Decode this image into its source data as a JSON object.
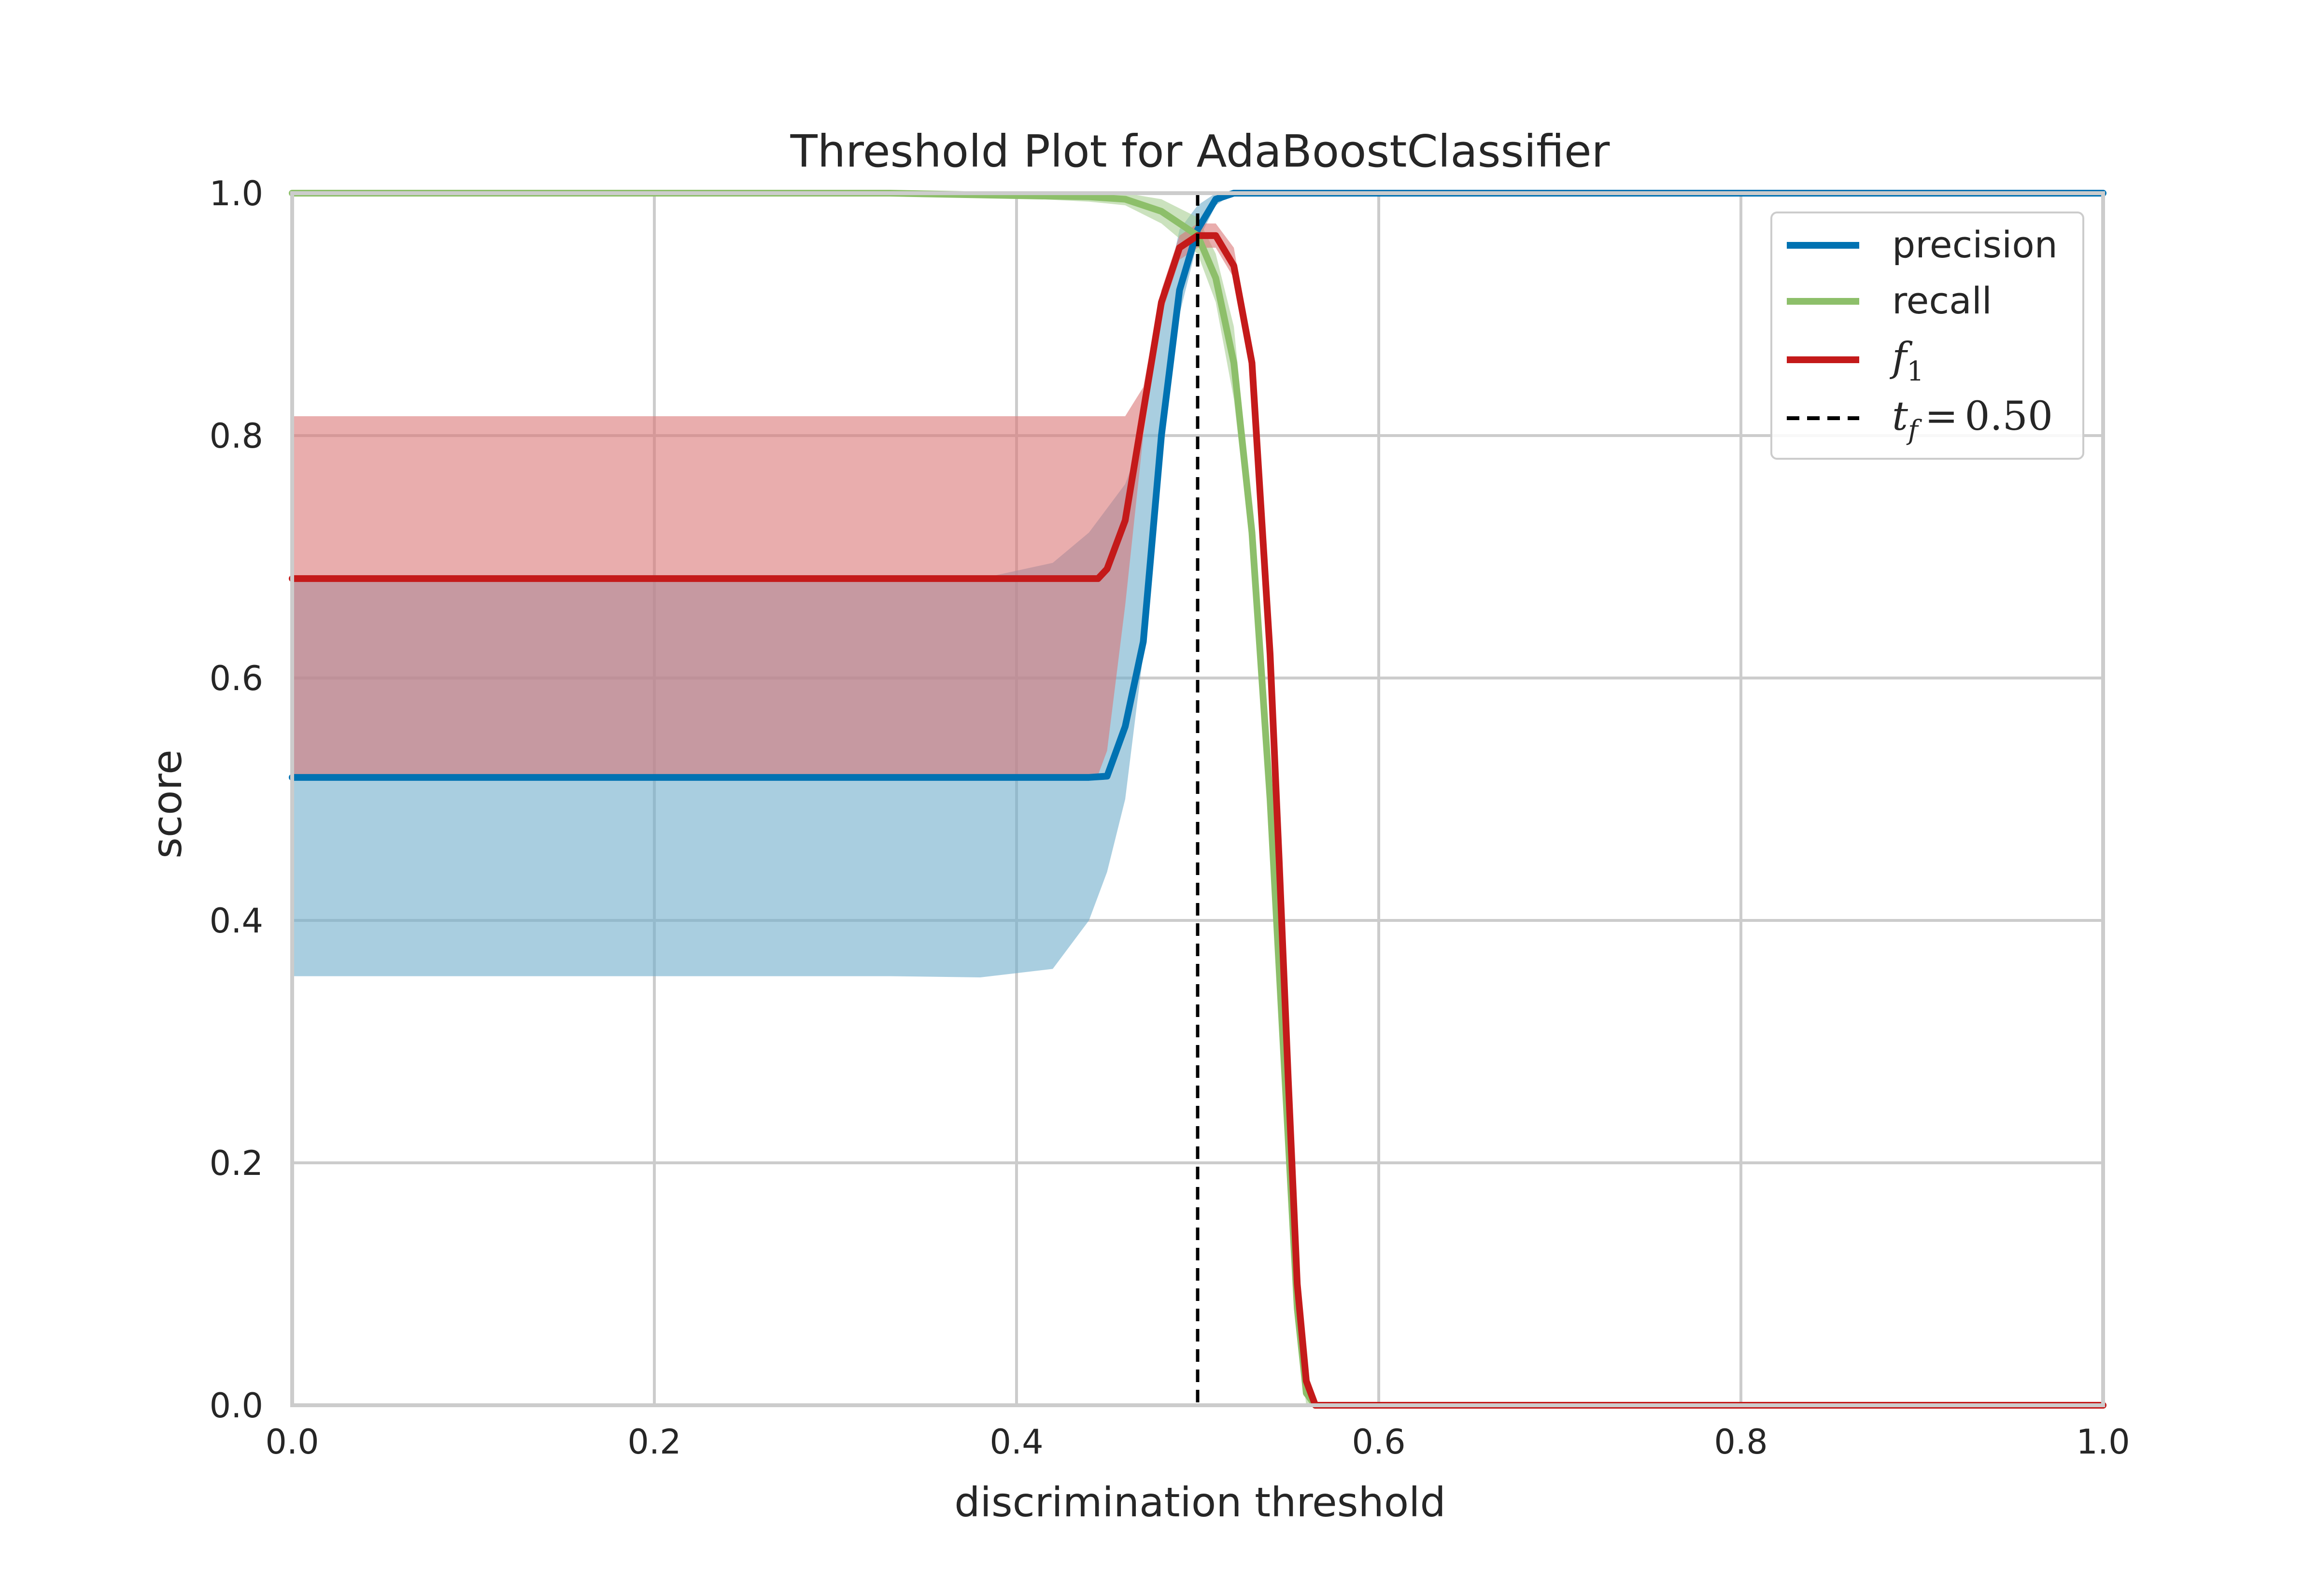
{
  "chart_data": {
    "type": "line",
    "title": "Threshold Plot for AdaBoostClassifier",
    "xlabel": "discrimination threshold",
    "ylabel": "score",
    "xlim": [
      0.0,
      1.0
    ],
    "ylim": [
      0.0,
      1.0
    ],
    "grid": true,
    "legend_position": "top-right",
    "x_tick_labels": [
      "0.0",
      "0.2",
      "0.4",
      "0.6",
      "0.8",
      "1.0"
    ],
    "y_tick_labels": [
      "0.0",
      "0.2",
      "0.4",
      "0.6",
      "0.8",
      "1.0"
    ],
    "threshold_line": {
      "value": 0.5,
      "label_sub": "f",
      "label_value": "0.50",
      "color": "#000000"
    },
    "series": [
      {
        "name": "precision",
        "color": "#0072B2",
        "band_color": "#6FAECB",
        "x": [
          0.0,
          0.33,
          0.38,
          0.42,
          0.44,
          0.45,
          0.46,
          0.47,
          0.48,
          0.49,
          0.5,
          0.51,
          0.52,
          0.53,
          1.0
        ],
        "y": [
          0.518,
          0.518,
          0.518,
          0.518,
          0.518,
          0.519,
          0.56,
          0.63,
          0.8,
          0.92,
          0.97,
          0.995,
          1.0,
          1.0,
          1.0
        ],
        "lower": [
          0.354,
          0.354,
          0.353,
          0.36,
          0.4,
          0.44,
          0.5,
          0.62,
          0.78,
          0.9,
          0.96,
          0.99,
          1.0,
          1.0,
          1.0
        ],
        "upper": [
          0.682,
          0.682,
          0.682,
          0.695,
          0.72,
          0.74,
          0.76,
          0.8,
          0.9,
          0.97,
          0.99,
          1.0,
          1.0,
          1.0,
          1.0
        ]
      },
      {
        "name": "recall",
        "color": "#8DBF6A",
        "band_color": "#A9CF92",
        "x": [
          0.0,
          0.33,
          0.4,
          0.44,
          0.46,
          0.48,
          0.5,
          0.51,
          0.52,
          0.53,
          0.54,
          0.545,
          0.55,
          0.555,
          0.56,
          0.565,
          1.0
        ],
        "y": [
          1.0,
          1.0,
          0.998,
          0.997,
          0.995,
          0.985,
          0.965,
          0.93,
          0.86,
          0.72,
          0.5,
          0.36,
          0.22,
          0.08,
          0.01,
          0.0,
          0.0
        ],
        "lower": [
          1.0,
          0.998,
          0.996,
          0.993,
          0.99,
          0.975,
          0.95,
          0.91,
          0.83,
          0.7,
          0.48,
          0.34,
          0.2,
          0.06,
          0.0,
          0.0,
          0.0
        ],
        "upper": [
          1.0,
          1.0,
          1.0,
          1.0,
          1.0,
          0.995,
          0.98,
          0.95,
          0.89,
          0.74,
          0.52,
          0.38,
          0.24,
          0.1,
          0.02,
          0.0,
          0.0
        ]
      },
      {
        "name": "f1",
        "color": "#C41A1A",
        "band_color": "#DB7777",
        "x": [
          0.0,
          0.4,
          0.445,
          0.45,
          0.46,
          0.47,
          0.48,
          0.49,
          0.5,
          0.51,
          0.52,
          0.53,
          0.54,
          0.545,
          0.55,
          0.555,
          0.56,
          0.565,
          1.0
        ],
        "y": [
          0.682,
          0.682,
          0.682,
          0.69,
          0.73,
          0.82,
          0.91,
          0.955,
          0.965,
          0.965,
          0.94,
          0.86,
          0.62,
          0.45,
          0.27,
          0.1,
          0.02,
          0.0,
          0.0
        ],
        "lower": [
          0.518,
          0.518,
          0.52,
          0.54,
          0.66,
          0.8,
          0.9,
          0.945,
          0.955,
          0.955,
          0.93,
          0.85,
          0.61,
          0.44,
          0.26,
          0.09,
          0.01,
          0.0,
          0.0
        ],
        "upper": [
          0.816,
          0.816,
          0.816,
          0.816,
          0.816,
          0.84,
          0.92,
          0.965,
          0.975,
          0.975,
          0.955,
          0.87,
          0.64,
          0.47,
          0.29,
          0.12,
          0.03,
          0.0,
          0.0
        ]
      }
    ]
  }
}
